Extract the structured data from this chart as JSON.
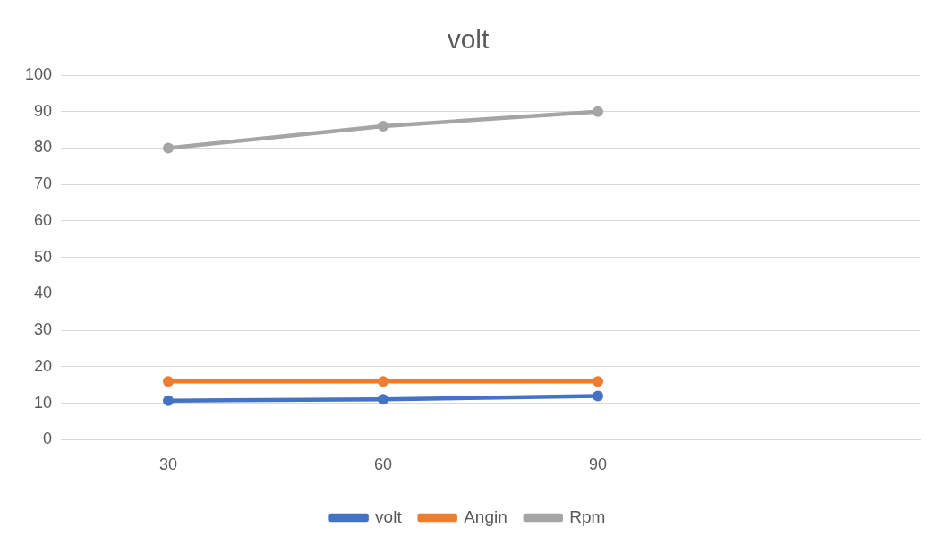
{
  "chart_data": {
    "type": "line",
    "title": "volt",
    "categories": [
      "30",
      "60",
      "90",
      null
    ],
    "series": [
      {
        "name": "volt",
        "color": "#4472c4",
        "values": [
          10.7,
          11.1,
          12,
          null
        ]
      },
      {
        "name": "Angin",
        "color": "#ed7d31",
        "values": [
          16,
          16,
          16,
          null
        ]
      },
      {
        "name": "Rpm",
        "color": "#a5a5a5",
        "values": [
          80,
          86,
          90,
          null
        ]
      }
    ],
    "ylim": [
      0,
      100
    ],
    "yticks": [
      0,
      10,
      20,
      30,
      40,
      50,
      60,
      70,
      80,
      90,
      100
    ],
    "grid": "y",
    "legend": "bottom",
    "marker": "circle",
    "line_style": "solid"
  }
}
